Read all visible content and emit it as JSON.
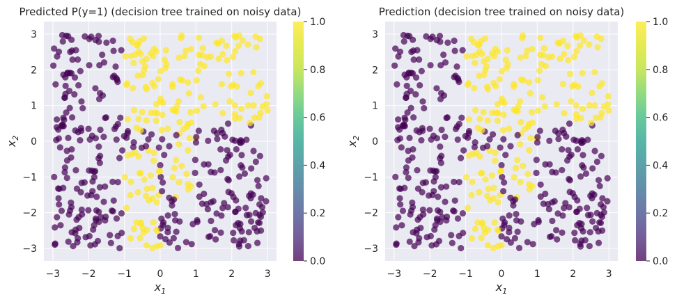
{
  "chart_data": [
    {
      "type": "scatter",
      "title": "Predicted P(y=1) (decision tree trained on noisy data)",
      "xlabel": "x",
      "xlabel_sub": "1",
      "ylabel": "x",
      "ylabel_sub": "2",
      "xlim": [
        -3.25,
        3.25
      ],
      "ylim": [
        -3.35,
        3.35
      ],
      "xticks": [
        -3,
        -2,
        -1,
        0,
        1,
        2,
        3
      ],
      "xtick_labels": [
        "−3",
        "−2",
        "−1",
        "0",
        "1",
        "2",
        "3"
      ],
      "yticks": [
        -3,
        -2,
        -1,
        0,
        1,
        2,
        3
      ],
      "ytick_labels": [
        "−3",
        "−2",
        "−1",
        "0",
        "1",
        "2",
        "3"
      ],
      "colorbar": {
        "range": [
          0.0,
          1.0
        ],
        "ticks": [
          "0.0",
          "0.2",
          "0.4",
          "0.6",
          "0.8",
          "1.0"
        ],
        "cmap": "viridis",
        "alpha": 0.7
      },
      "marker_alpha": 0.7,
      "n_points": 520,
      "seed": 20240611
    },
    {
      "type": "scatter",
      "title": "Prediction (decision tree trained on noisy data)",
      "xlabel": "x",
      "xlabel_sub": "1",
      "ylabel": "x",
      "ylabel_sub": "2",
      "xlim": [
        -3.25,
        3.25
      ],
      "ylim": [
        -3.35,
        3.35
      ],
      "xticks": [
        -3,
        -2,
        -1,
        0,
        1,
        2,
        3
      ],
      "xtick_labels": [
        "−3",
        "−2",
        "−1",
        "0",
        "1",
        "2",
        "3"
      ],
      "yticks": [
        -3,
        -2,
        -1,
        0,
        1,
        2,
        3
      ],
      "ytick_labels": [
        "−3",
        "−2",
        "−1",
        "0",
        "1",
        "2",
        "3"
      ],
      "colorbar": {
        "range": [
          0.0,
          1.0
        ],
        "ticks": [
          "0.0",
          "0.2",
          "0.4",
          "0.6",
          "0.8",
          "1.0"
        ],
        "cmap": "viridis",
        "alpha": 0.7
      },
      "marker_alpha": 0.7,
      "n_points": 520,
      "seed": 20240611
    }
  ],
  "colors": {
    "class0": "#440154",
    "class1": "#fde725",
    "plot_bg": "#eaeaf2",
    "grid": "#ffffff",
    "text": "#262626"
  }
}
